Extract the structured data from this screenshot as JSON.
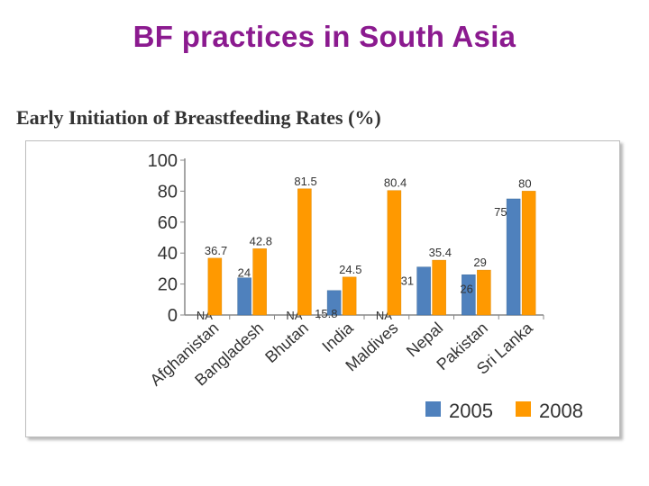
{
  "slide_title": "BF practices in South Asia",
  "colors": {
    "title": "#8b1a8f",
    "series_2005": "#4f81bd",
    "series_2008": "#ff9900"
  },
  "chart_data": {
    "type": "bar",
    "title": "Early Initiation of Breastfeeding Rates (%)",
    "categories": [
      "Afghanistan",
      "Bangladesh",
      "Bhutan",
      "India",
      "Maldives",
      "Nepal",
      "Pakistan",
      "Sri Lanka"
    ],
    "series": [
      {
        "name": "2005",
        "values": [
          null,
          24,
          null,
          15.8,
          null,
          31,
          26,
          75
        ],
        "labels": [
          "NA",
          "24",
          "NA",
          "15.8",
          "NA",
          "31",
          "26",
          "75"
        ]
      },
      {
        "name": "2008",
        "values": [
          36.7,
          42.8,
          81.5,
          24.5,
          80.4,
          35.4,
          29,
          80
        ],
        "labels": [
          "36.7",
          "42.8",
          "81.5",
          "24.5",
          "80.4",
          "35.4",
          "29",
          "80"
        ]
      }
    ],
    "yticks": [
      "0",
      "20",
      "40",
      "60",
      "80",
      "100"
    ],
    "ylim": [
      0,
      100
    ],
    "legend_position": "bottom-right",
    "xlabel": "",
    "ylabel": ""
  }
}
